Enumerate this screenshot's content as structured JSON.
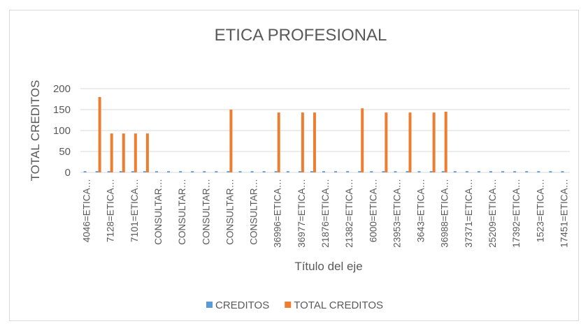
{
  "chart_data": {
    "type": "bar",
    "title": "ETICA PROFESIONAL",
    "x_label": "Título del eje",
    "y_label": "TOTAL CREDITOS",
    "categories": [
      "4046=ETICA…",
      null,
      "7128=ETICA…",
      null,
      "7101=ETICA…",
      null,
      "CONSULTAR…",
      null,
      "CONSULTAR…",
      null,
      "CONSULTAR…",
      null,
      "CONSULTAR…",
      null,
      "CONSULTAR…",
      null,
      "36996=ETICA…",
      null,
      "36977=ETICA…",
      null,
      "21876=ETICA…",
      null,
      "21382=ETICA…",
      null,
      "6000=ETICA…",
      null,
      "23953=ETICA…",
      null,
      "3643=ETICA…",
      null,
      "36988=ETICA…",
      null,
      "37371=ETICA…",
      null,
      "25209=ETICA…",
      null,
      "17392=ETICA…",
      null,
      "1523=ETICA…",
      null,
      "17451=ETICA…"
    ],
    "series": [
      {
        "name": "CREDITOS",
        "color": "#5b9bd5",
        "values": [
          3,
          3,
          3,
          3,
          3,
          3,
          3,
          3,
          3,
          3,
          3,
          3,
          3,
          3,
          3,
          3,
          3,
          3,
          3,
          3,
          3,
          3,
          3,
          3,
          3,
          3,
          3,
          3,
          3,
          3,
          3,
          3,
          3,
          3,
          3,
          3,
          3,
          3,
          3,
          3,
          3
        ]
      },
      {
        "name": "TOTAL CREDITOS",
        "color": "#ed7d31",
        "values": [
          0,
          180,
          93,
          93,
          93,
          93,
          0,
          0,
          0,
          0,
          0,
          0,
          150,
          0,
          0,
          0,
          143,
          0,
          143,
          143,
          0,
          0,
          0,
          153,
          0,
          143,
          0,
          143,
          0,
          143,
          145,
          0,
          0,
          0,
          0,
          0,
          0,
          0,
          0,
          0,
          0
        ]
      }
    ],
    "ylim": [
      0,
      200
    ],
    "yticks": [
      0,
      50,
      100,
      150,
      200
    ],
    "grid": true,
    "legend": "bottom"
  }
}
